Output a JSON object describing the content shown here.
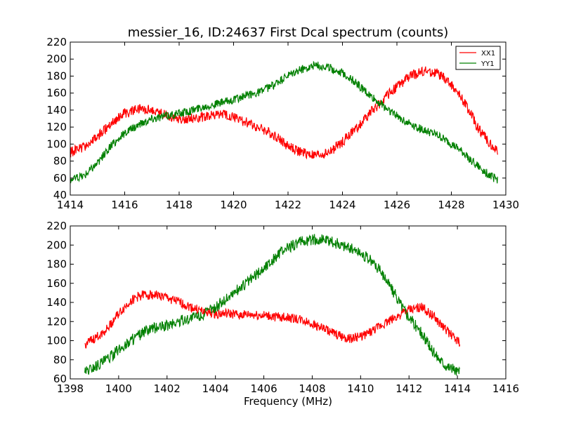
{
  "chart_data": [
    {
      "type": "line",
      "title": "messier_16, ID:24637 First Dcal spectrum (counts)",
      "xlabel": "",
      "ylabel": "",
      "xlim": [
        1414,
        1430
      ],
      "ylim": [
        40,
        220
      ],
      "xticks": [
        "1414",
        "1416",
        "1418",
        "1420",
        "1422",
        "1424",
        "1426",
        "1428",
        "1430"
      ],
      "yticks": [
        "40",
        "60",
        "80",
        "100",
        "120",
        "140",
        "160",
        "180",
        "200",
        "220"
      ],
      "legend": {
        "position": "top-right",
        "entries": [
          {
            "label": "XX1",
            "color": "#ff0000"
          },
          {
            "label": "YY1",
            "color": "#008000"
          }
        ]
      },
      "series": [
        {
          "name": "XX1",
          "color": "#ff0000",
          "x": [
            1414.0,
            1414.5,
            1415.0,
            1415.5,
            1416.0,
            1416.5,
            1417.0,
            1417.5,
            1418.0,
            1418.5,
            1419.0,
            1419.5,
            1420.0,
            1420.5,
            1421.0,
            1421.5,
            1422.0,
            1422.5,
            1423.0,
            1423.5,
            1424.0,
            1424.5,
            1425.0,
            1425.5,
            1426.0,
            1426.5,
            1427.0,
            1427.5,
            1428.0,
            1428.5,
            1429.0,
            1429.5,
            1429.7
          ],
          "y": [
            90,
            97,
            108,
            125,
            136,
            141,
            140,
            135,
            130,
            130,
            133,
            135,
            132,
            125,
            118,
            110,
            98,
            90,
            86,
            90,
            103,
            118,
            136,
            152,
            168,
            180,
            186,
            183,
            170,
            148,
            118,
            98,
            90
          ],
          "noise": 6
        },
        {
          "name": "YY1",
          "color": "#008000",
          "x": [
            1414.0,
            1414.5,
            1415.0,
            1415.5,
            1416.0,
            1416.5,
            1417.0,
            1417.5,
            1418.0,
            1418.5,
            1419.0,
            1419.5,
            1420.0,
            1420.5,
            1421.0,
            1421.5,
            1422.0,
            1422.5,
            1423.0,
            1423.5,
            1424.0,
            1424.5,
            1425.0,
            1425.5,
            1426.0,
            1426.5,
            1427.0,
            1427.5,
            1428.0,
            1428.5,
            1429.0,
            1429.5,
            1429.7
          ],
          "y": [
            58,
            63,
            78,
            98,
            113,
            123,
            130,
            133,
            136,
            140,
            145,
            148,
            152,
            157,
            162,
            170,
            180,
            188,
            193,
            190,
            184,
            172,
            157,
            145,
            133,
            124,
            116,
            110,
            100,
            88,
            73,
            61,
            58
          ],
          "noise": 5
        }
      ]
    },
    {
      "type": "line",
      "title": "",
      "xlabel": "Frequency (MHz)",
      "ylabel": "",
      "xlim": [
        1398,
        1416
      ],
      "ylim": [
        60,
        220
      ],
      "xticks": [
        "1398",
        "1400",
        "1402",
        "1404",
        "1406",
        "1408",
        "1410",
        "1412",
        "1414",
        "1416"
      ],
      "yticks": [
        "60",
        "80",
        "100",
        "120",
        "140",
        "160",
        "180",
        "200",
        "220"
      ],
      "grid": false,
      "series": [
        {
          "name": "XX1",
          "color": "#ff0000",
          "x": [
            1398.6,
            1399.0,
            1399.5,
            1400.0,
            1400.5,
            1401.0,
            1401.5,
            1402.0,
            1402.5,
            1403.0,
            1403.5,
            1404.0,
            1404.5,
            1405.0,
            1405.5,
            1406.0,
            1406.5,
            1407.0,
            1407.5,
            1408.0,
            1408.5,
            1409.0,
            1409.5,
            1410.0,
            1410.5,
            1411.0,
            1411.5,
            1412.0,
            1412.5,
            1413.0,
            1413.5,
            1414.0,
            1414.1
          ],
          "y": [
            96,
            102,
            112,
            128,
            142,
            148,
            148,
            145,
            140,
            135,
            130,
            128,
            128,
            127,
            127,
            126,
            125,
            124,
            122,
            118,
            112,
            106,
            102,
            104,
            110,
            118,
            125,
            132,
            135,
            126,
            112,
            100,
            97
          ],
          "noise": 5
        },
        {
          "name": "YY1",
          "color": "#008000",
          "x": [
            1398.6,
            1399.0,
            1399.5,
            1400.0,
            1400.5,
            1401.0,
            1401.5,
            1402.0,
            1402.5,
            1403.0,
            1403.5,
            1404.0,
            1404.5,
            1405.0,
            1405.5,
            1406.0,
            1406.5,
            1407.0,
            1407.5,
            1408.0,
            1408.5,
            1409.0,
            1409.5,
            1410.0,
            1410.5,
            1411.0,
            1411.5,
            1412.0,
            1412.5,
            1413.0,
            1413.5,
            1414.0,
            1414.1
          ],
          "y": [
            67,
            73,
            80,
            90,
            100,
            108,
            113,
            116,
            120,
            124,
            127,
            135,
            145,
            155,
            165,
            176,
            188,
            197,
            203,
            206,
            205,
            202,
            198,
            192,
            182,
            167,
            145,
            125,
            108,
            88,
            75,
            68,
            66
          ],
          "noise": 6
        }
      ]
    }
  ]
}
